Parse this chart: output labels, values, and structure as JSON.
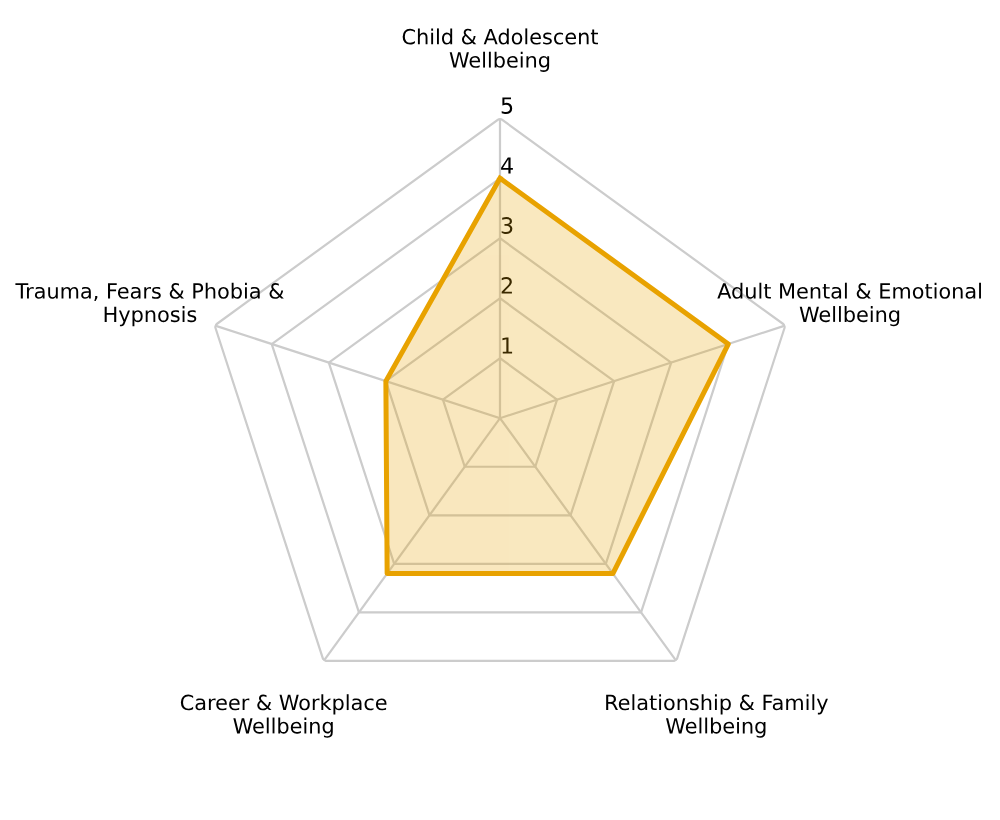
{
  "chart_data": {
    "type": "radar",
    "categories": [
      "Child & Adolescent\nWellbeing",
      "Adult Mental & Emotional\nWellbeing",
      "Relationship & Family\nWellbeing",
      "Career & Workplace\nWellbeing",
      "Trauma, Fears & Phobia &\nHypnosis"
    ],
    "series": [
      {
        "color": "#e8a200",
        "values": [
          4,
          4,
          3.2,
          3.2,
          2
        ]
      }
    ],
    "ylim": [
      0,
      5
    ],
    "yticks": [
      1,
      2,
      3,
      4,
      5
    ],
    "grid": true,
    "marker": "none"
  }
}
